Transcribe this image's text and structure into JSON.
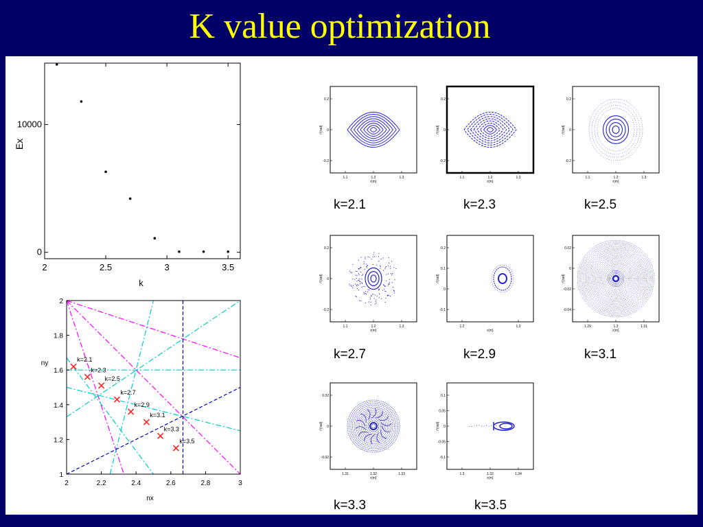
{
  "slide": {
    "title": "K value optimization"
  },
  "chart_data": [
    {
      "type": "scatter",
      "title": "",
      "xlabel": "k",
      "ylabel": "Ex",
      "xlim": [
        2,
        3.6
      ],
      "ylim": [
        -500,
        14800
      ],
      "x_ticks": [
        "2",
        "2.5",
        "3",
        "3.5"
      ],
      "y_ticks": [
        "0",
        "10000"
      ],
      "points": [
        {
          "x": 2.1,
          "y": 14700
        },
        {
          "x": 2.3,
          "y": 11800
        },
        {
          "x": 2.5,
          "y": 6300
        },
        {
          "x": 2.7,
          "y": 4200
        },
        {
          "x": 2.9,
          "y": 1100
        },
        {
          "x": 3.1,
          "y": 50
        },
        {
          "x": 3.3,
          "y": 50
        },
        {
          "x": 3.5,
          "y": 50
        }
      ]
    },
    {
      "type": "scatter",
      "title": "",
      "xlabel": "nx",
      "ylabel": "ny",
      "xlim": [
        2,
        3
      ],
      "ylim": [
        1,
        2
      ],
      "x_ticks": [
        "2",
        "2.2",
        "2.4",
        "2.6",
        "2.8",
        "3"
      ],
      "y_ticks": [
        "1",
        "1.2",
        "1.4",
        "1.6",
        "1.8",
        "2"
      ],
      "points": [
        {
          "label": "k=2.1",
          "x": 2.04,
          "y": 1.62
        },
        {
          "label": "k=2.3",
          "x": 2.12,
          "y": 1.56
        },
        {
          "label": "k=2.5",
          "x": 2.2,
          "y": 1.51
        },
        {
          "label": "k=2.7",
          "x": 2.29,
          "y": 1.43
        },
        {
          "label": "k=2.9",
          "x": 2.37,
          "y": 1.36
        },
        {
          "label": "k=3.1",
          "x": 2.46,
          "y": 1.3
        },
        {
          "label": "k=3.3",
          "x": 2.54,
          "y": 1.22
        },
        {
          "label": "k=3.5",
          "x": 2.63,
          "y": 1.15
        }
      ],
      "resonance_lines": [
        {
          "color": "#ff00ff",
          "style": "dashdot",
          "p1": [
            2,
            2
          ],
          "p2": [
            2.33,
            1
          ]
        },
        {
          "color": "#ff00ff",
          "style": "dashdot",
          "p1": [
            2,
            2
          ],
          "p2": [
            3,
            1
          ]
        },
        {
          "color": "#ff00ff",
          "style": "dashdot",
          "p1": [
            2,
            2
          ],
          "p2": [
            3,
            1.67
          ]
        },
        {
          "color": "#00cccc",
          "style": "dashdot",
          "p1": [
            2.25,
            1
          ],
          "p2": [
            2.5,
            2
          ]
        },
        {
          "color": "#00cccc",
          "style": "dashdot",
          "p1": [
            2,
            1.33
          ],
          "p2": [
            3,
            2
          ]
        },
        {
          "color": "#00cccc",
          "style": "dashdot",
          "p1": [
            2,
            1.67
          ],
          "p2": [
            2.5,
            1
          ]
        },
        {
          "color": "#00cccc",
          "style": "dashdot",
          "p1": [
            2,
            1.5
          ],
          "p2": [
            3,
            1.25
          ]
        },
        {
          "color": "#00cccc",
          "style": "dashdot",
          "p1": [
            2,
            1.6
          ],
          "p2": [
            3,
            1.6
          ]
        },
        {
          "color": "#0000cc",
          "style": "dashed",
          "p1": [
            2.67,
            1
          ],
          "p2": [
            2.67,
            2
          ]
        },
        {
          "color": "#0000cc",
          "style": "dashed",
          "p1": [
            2,
            1
          ],
          "p2": [
            3,
            1.5
          ]
        }
      ]
    }
  ],
  "phase_plots": [
    {
      "caption": "k=2.1",
      "ylabel": "r'(rad)",
      "xlabel": "r(m)",
      "y_ticks": [
        "0.2",
        "0",
        "-0.2"
      ],
      "x_ticks": [
        "1.1",
        "1.2",
        "1.3"
      ],
      "pattern": "nested"
    },
    {
      "caption": "k=2.3",
      "ylabel": "r'(rad)",
      "xlabel": "r(m)",
      "y_ticks": [
        "0.2",
        "0",
        "-0.2"
      ],
      "x_ticks": [
        "1.1",
        "1.2",
        "1.3"
      ],
      "pattern": "nested-dashed"
    },
    {
      "caption": "k=2.5",
      "ylabel": "r'(rad)",
      "xlabel": "r(m)",
      "y_ticks": [
        "0.2",
        "0",
        "-0.2"
      ],
      "x_ticks": [
        "1.1",
        "1.2",
        "1.3"
      ],
      "pattern": "islands"
    },
    {
      "caption": "k=2.7",
      "ylabel": "r'(rad)",
      "xlabel": "r(m)",
      "y_ticks": [
        "0.2",
        "0",
        "-0.2"
      ],
      "x_ticks": [
        "1.1",
        "1.2",
        "1.3"
      ],
      "pattern": "scatter-core"
    },
    {
      "caption": "k=2.9",
      "ylabel": "r'(rad)",
      "xlabel": "r(m)",
      "y_ticks": [
        "0.2",
        "0.1",
        "0",
        "-0.1"
      ],
      "x_ticks": [
        "1.2",
        "1.3"
      ],
      "pattern": "small-core"
    },
    {
      "caption": "k=3.1",
      "ylabel": "r'(rad)",
      "xlabel": "r(m)",
      "y_ticks": [
        "0.02",
        "0",
        "-0.02",
        "-0.04"
      ],
      "x_ticks": [
        "1.29",
        "1.3",
        "1.31"
      ],
      "pattern": "dense"
    },
    {
      "caption": "k=3.3",
      "ylabel": "r'(rad)",
      "xlabel": "r(m)",
      "y_ticks": [
        "0.02",
        "0",
        "-0.02"
      ],
      "x_ticks": [
        "1.31",
        "1.32",
        "1.33"
      ],
      "pattern": "swirl"
    },
    {
      "caption": "k=3.5",
      "ylabel": "r'(rad)",
      "xlabel": "r(m)",
      "y_ticks": [
        "0.1",
        "0.05",
        "0",
        "-0.05",
        "-0.1"
      ],
      "x_ticks": [
        "1.3",
        "1.32",
        "1.34"
      ],
      "pattern": "tail"
    }
  ],
  "colors": {
    "background": "#000066",
    "title": "#ffff00",
    "orbit": "#2222cc",
    "marker": "#ff2222"
  }
}
